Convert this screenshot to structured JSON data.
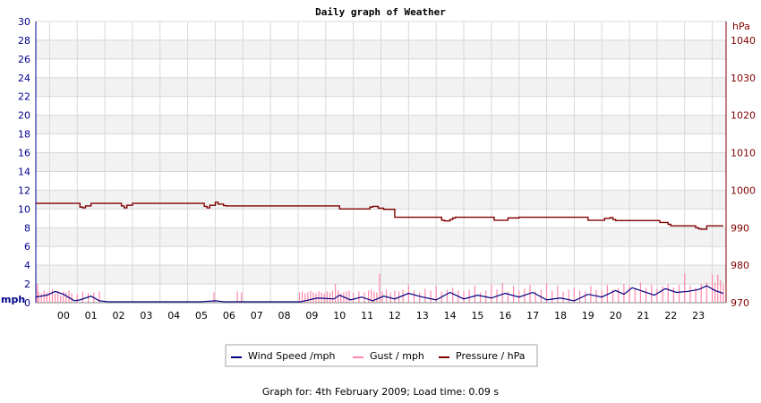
{
  "chart_data": {
    "type": "line",
    "title": "Daily graph of Weather",
    "left_axis": {
      "unit": "mph",
      "ylim": [
        0,
        30
      ],
      "ticks": [
        0,
        2,
        4,
        6,
        8,
        10,
        12,
        14,
        16,
        18,
        20,
        22,
        24,
        26,
        28,
        30
      ]
    },
    "right_axis": {
      "unit": "hPa",
      "ylim": [
        970,
        1045
      ],
      "ticks": [
        970,
        980,
        990,
        1000,
        1010,
        1020,
        1030,
        1040
      ]
    },
    "categories": [
      "00",
      "01",
      "02",
      "03",
      "04",
      "05",
      "06",
      "07",
      "08",
      "09",
      "10",
      "11",
      "12",
      "13",
      "14",
      "15",
      "16",
      "17",
      "18",
      "19",
      "20",
      "21",
      "22",
      "23"
    ],
    "xlim": [
      -1,
      24
    ],
    "grid": true,
    "legend_position": "bottom",
    "series": [
      {
        "name": "Wind Speed /mph",
        "axis": "left",
        "color": "#000080",
        "x": [
          -1,
          -0.6,
          -0.3,
          0,
          0.4,
          0.6,
          1,
          1.3,
          1.6,
          2,
          5,
          5.5,
          5.8,
          8.6,
          9.2,
          9.8,
          10,
          10.4,
          10.8,
          11.2,
          11.6,
          12,
          12.5,
          13,
          13.5,
          14,
          14.5,
          15,
          15.5,
          16,
          16.5,
          17,
          17.5,
          18,
          18.5,
          19,
          19.5,
          20,
          20.3,
          20.6,
          21,
          21.4,
          21.8,
          22.2,
          22.6,
          23,
          23.3,
          23.6,
          23.9
        ],
        "values": [
          0.6,
          0.8,
          1.2,
          0.9,
          0.2,
          0.3,
          0.7,
          0.2,
          0.1,
          0.1,
          0.1,
          0.2,
          0.1,
          0.1,
          0.5,
          0.4,
          0.8,
          0.3,
          0.6,
          0.2,
          0.7,
          0.4,
          1,
          0.6,
          0.3,
          1.1,
          0.4,
          0.8,
          0.5,
          1,
          0.6,
          1.1,
          0.3,
          0.5,
          0.2,
          0.9,
          0.6,
          1.3,
          0.9,
          1.6,
          1.2,
          0.8,
          1.5,
          1.1,
          1.2,
          1.4,
          1.8,
          1.3,
          1.0
        ]
      },
      {
        "name": "Gust / mph",
        "axis": "left",
        "color": "#ff88aa",
        "x": [
          -0.95,
          -0.9,
          -0.8,
          -0.7,
          -0.6,
          -0.5,
          -0.4,
          -0.3,
          -0.2,
          -0.1,
          0,
          0.1,
          0.2,
          0.3,
          0.5,
          0.7,
          0.9,
          1.1,
          1.3,
          5.45,
          6.3,
          6.45,
          8.55,
          8.65,
          8.75,
          8.85,
          8.95,
          9.05,
          9.15,
          9.25,
          9.35,
          9.45,
          9.55,
          9.65,
          9.75,
          9.85,
          9.95,
          10.05,
          10.15,
          10.25,
          10.35,
          10.5,
          10.7,
          10.9,
          11.05,
          11.15,
          11.25,
          11.35,
          11.45,
          11.55,
          11.7,
          11.85,
          12,
          12.15,
          12.3,
          12.5,
          12.7,
          12.9,
          13.1,
          13.3,
          13.5,
          13.7,
          13.9,
          14.1,
          14.3,
          14.5,
          14.7,
          14.9,
          15.1,
          15.3,
          15.5,
          15.7,
          15.9,
          16.1,
          16.3,
          16.5,
          16.7,
          16.9,
          17.1,
          17.3,
          17.5,
          17.7,
          17.9,
          18.1,
          18.3,
          18.5,
          18.7,
          18.9,
          19.1,
          19.3,
          19.5,
          19.7,
          19.9,
          20.1,
          20.3,
          20.5,
          20.7,
          20.9,
          21.1,
          21.3,
          21.5,
          21.7,
          21.9,
          22.1,
          22.3,
          22.5,
          22.7,
          22.9,
          23.1,
          23.3,
          23.5,
          23.6,
          23.7,
          23.8,
          23.9
        ],
        "values": [
          2,
          1.2,
          1,
          1.3,
          1.1,
          1.2,
          1.4,
          1,
          1.3,
          0.8,
          1.2,
          1.1,
          1.3,
          1,
          0.9,
          1.2,
          1,
          1.1,
          1.2,
          1.1,
          1.2,
          1.1,
          1.1,
          1.2,
          1,
          1.1,
          1.3,
          1.1,
          1,
          1.2,
          1.1,
          1,
          1.2,
          1.1,
          1.3,
          2,
          1.3,
          1,
          1.1,
          1.2,
          1.3,
          1.1,
          1.2,
          1.1,
          1.3,
          1.4,
          1.2,
          1.1,
          3.1,
          1.2,
          1.4,
          1.1,
          1.3,
          1.2,
          1.4,
          1.9,
          1.3,
          1.1,
          1.5,
          1.3,
          1.8,
          1.2,
          1.4,
          1.6,
          1.3,
          1.2,
          1.4,
          1.8,
          1.1,
          1.3,
          1.9,
          1.4,
          2.1,
          1.2,
          1.8,
          1.3,
          1.5,
          1.9,
          1.2,
          1.4,
          2.1,
          1.3,
          1.8,
          1.2,
          1.4,
          1.6,
          1.3,
          1.2,
          1.8,
          1.4,
          1.3,
          1.9,
          1.4,
          1.6,
          2,
          1.8,
          1.5,
          2.2,
          1.6,
          1.9,
          1.5,
          1.8,
          2,
          1.6,
          1.9,
          3.1,
          1.8,
          1.6,
          2,
          2.2,
          3,
          2.1,
          3,
          2.4,
          1.9
        ]
      },
      {
        "name": "Pressure / hPa",
        "axis": "right",
        "color": "#800000",
        "x": [
          -1,
          0.5,
          0.6,
          0.7,
          0.8,
          1,
          2,
          2.1,
          2.2,
          2.3,
          2.5,
          5,
          5.1,
          5.2,
          5.3,
          5.5,
          5.6,
          5.8,
          5.9,
          6,
          9.9,
          10,
          11,
          11.1,
          11.2,
          11.4,
          11.6,
          11.9,
          12,
          13.6,
          13.7,
          13.8,
          13.9,
          14,
          14.1,
          14.2,
          14.5,
          15.5,
          15.6,
          15.8,
          16,
          16.1,
          16.5,
          18.9,
          19,
          19.5,
          19.6,
          19.8,
          19.9,
          20,
          21.5,
          21.6,
          21.9,
          22,
          22.5,
          22.8,
          22.9,
          23,
          23.1,
          23.3,
          23.9
        ],
        "values": [
          996.5,
          996.5,
          995.5,
          995.3,
          995.8,
          996.5,
          996.5,
          995.8,
          995.3,
          996,
          996.5,
          996.5,
          995.7,
          995.3,
          996,
          996.8,
          996.3,
          995.9,
          995.8,
          995.8,
          995.8,
          995,
          995,
          995.5,
          995.7,
          995.2,
          994.9,
          994.9,
          992.8,
          992.8,
          992,
          991.8,
          991.8,
          992.2,
          992.6,
          992.8,
          992.8,
          992.8,
          992,
          992,
          992,
          992.6,
          992.8,
          992.8,
          992,
          992,
          992.5,
          992.7,
          992.2,
          991.9,
          991.9,
          991.4,
          990.9,
          990.5,
          990.5,
          990.5,
          990,
          989.7,
          989.6,
          990.5,
          990.5
        ]
      }
    ]
  },
  "legend": {
    "items": [
      {
        "label": "Wind Speed /mph",
        "color": "#000080"
      },
      {
        "label": "Gust / mph",
        "color": "#ff88aa"
      },
      {
        "label": "Pressure / hPa",
        "color": "#800000"
      }
    ]
  },
  "footer": "Graph for: 4th February 2009; Load time: 0.09 s"
}
